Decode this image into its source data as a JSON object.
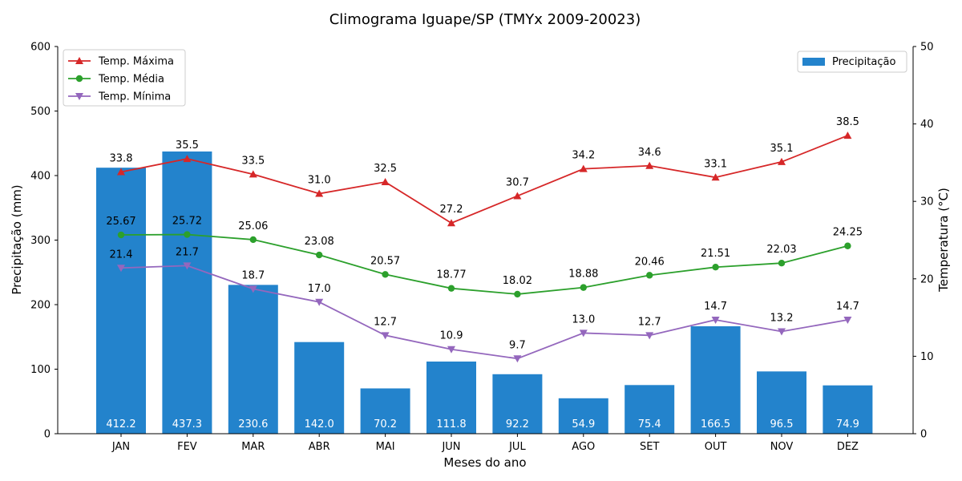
{
  "chart_data": {
    "type": "bar+line",
    "title": "Climograma Iguape/SP (TMYx 2009-20023)",
    "xlabel": "Meses do ano",
    "ylabel_left": "Precipitação (mm)",
    "ylabel_right": "Temperatura (°C)",
    "ylim_left": [
      0,
      600
    ],
    "ylim_right": [
      0,
      50
    ],
    "yticks_left": [
      0,
      100,
      200,
      300,
      400,
      500,
      600
    ],
    "yticks_right": [
      0,
      10,
      20,
      30,
      40,
      50
    ],
    "grid": false,
    "categories": [
      "JAN",
      "FEV",
      "MAR",
      "ABR",
      "MAI",
      "JUN",
      "JUL",
      "AGO",
      "SET",
      "OUT",
      "NOV",
      "DEZ"
    ],
    "bar_series": {
      "name": "Precipitação",
      "color": "#2383cc",
      "values": [
        412.2,
        437.3,
        230.6,
        142.0,
        70.2,
        111.8,
        92.2,
        54.9,
        75.4,
        166.5,
        96.5,
        74.9
      ],
      "labels": [
        "412.2",
        "437.3",
        "230.6",
        "142.0",
        "70.2",
        "111.8",
        "92.2",
        "54.9",
        "75.4",
        "166.5",
        "96.5",
        "74.9"
      ]
    },
    "line_series": [
      {
        "name": "Temp. Máxima",
        "color": "#d62728",
        "marker": "triangle-up",
        "values": [
          33.8,
          35.5,
          33.5,
          31.0,
          32.5,
          27.2,
          30.7,
          34.2,
          34.6,
          33.1,
          35.1,
          38.5
        ],
        "labels": [
          "33.8",
          "35.5",
          "33.5",
          "31.0",
          "32.5",
          "27.2",
          "30.7",
          "34.2",
          "34.6",
          "33.1",
          "35.1",
          "38.5"
        ]
      },
      {
        "name": "Temp. Média",
        "color": "#2ca02c",
        "marker": "circle",
        "values": [
          25.67,
          25.72,
          25.06,
          23.08,
          20.57,
          18.77,
          18.02,
          18.88,
          20.46,
          21.51,
          22.03,
          24.25
        ],
        "labels": [
          "25.67",
          "25.72",
          "25.06",
          "23.08",
          "20.57",
          "18.77",
          "18.02",
          "18.88",
          "20.46",
          "21.51",
          "22.03",
          "24.25"
        ]
      },
      {
        "name": "Temp. Mínima",
        "color": "#9467bd",
        "marker": "triangle-down",
        "values": [
          21.4,
          21.7,
          18.7,
          17.0,
          12.7,
          10.9,
          9.7,
          13.0,
          12.7,
          14.7,
          13.2,
          14.7
        ],
        "labels": [
          "21.4",
          "21.7",
          "18.7",
          "17.0",
          "12.7",
          "10.9",
          "9.7",
          "13.0",
          "12.7",
          "14.7",
          "13.2",
          "14.7"
        ]
      }
    ],
    "legend_lines_placement": "top-left",
    "legend_bars_placement": "top-right"
  }
}
